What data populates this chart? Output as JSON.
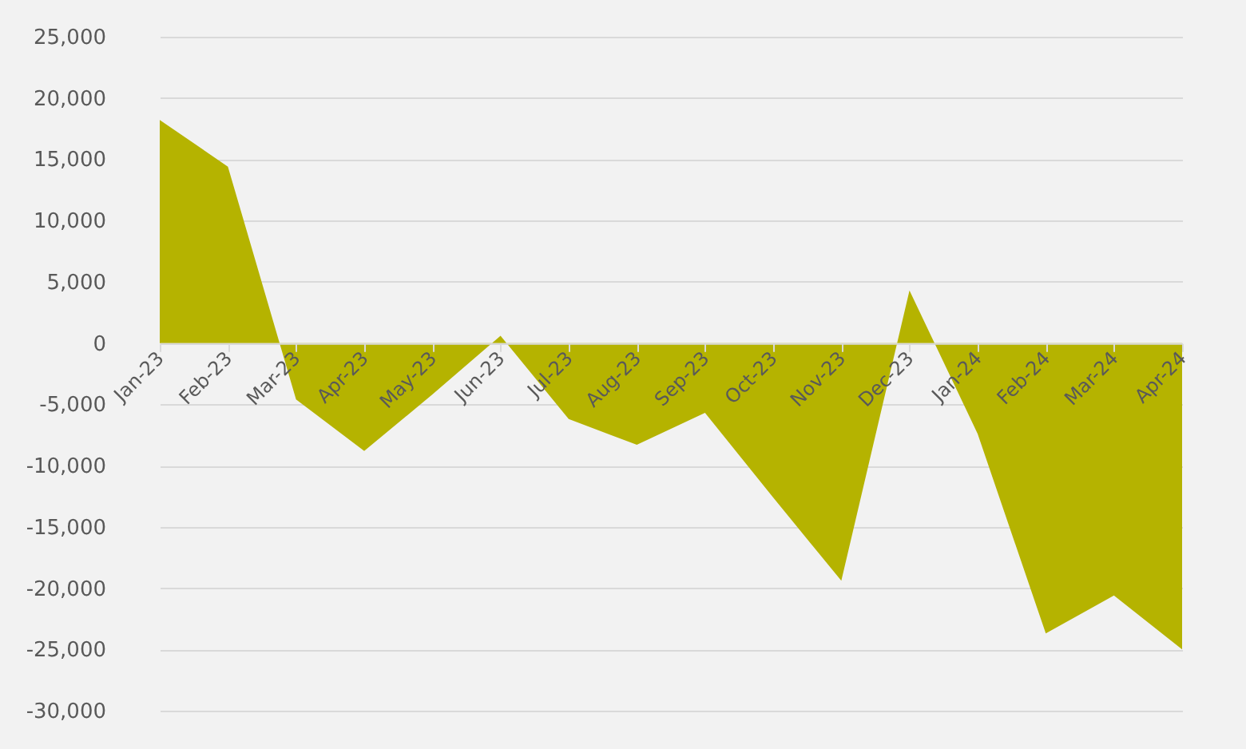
{
  "chart_data": {
    "type": "area",
    "categories": [
      "Jan-23",
      "Feb-23",
      "Mar-23",
      "Apr-23",
      "May-23",
      "Jun-23",
      "Jul-23",
      "Aug-23",
      "Sep-23",
      "Oct-23",
      "Nov-23",
      "Dec-23",
      "Jan-24",
      "Feb-24",
      "Mar-24",
      "Apr-24"
    ],
    "series": [
      {
        "color": "#b5b300",
        "values": [
          18200,
          14400,
          -4600,
          -8800,
          -4200,
          600,
          -6200,
          -8300,
          -5700,
          -12600,
          -19400,
          4300,
          -7400,
          -23700,
          -20600,
          -25000
        ]
      }
    ],
    "ylim": [
      -30000,
      25000
    ],
    "yticks": [
      {
        "value": -30000,
        "label": "-30,000"
      },
      {
        "value": -25000,
        "label": "-25,000"
      },
      {
        "value": -20000,
        "label": "-20,000"
      },
      {
        "value": -15000,
        "label": "-15,000"
      },
      {
        "value": -10000,
        "label": "-10,000"
      },
      {
        "value": -5000,
        "label": "-5,000"
      },
      {
        "value": 0,
        "label": "0"
      },
      {
        "value": 5000,
        "label": "5,000"
      },
      {
        "value": 10000,
        "label": "10,000"
      },
      {
        "value": 15000,
        "label": "15,000"
      },
      {
        "value": 20000,
        "label": "20,000"
      },
      {
        "value": 25000,
        "label": "25,000"
      }
    ],
    "grid": "y"
  }
}
